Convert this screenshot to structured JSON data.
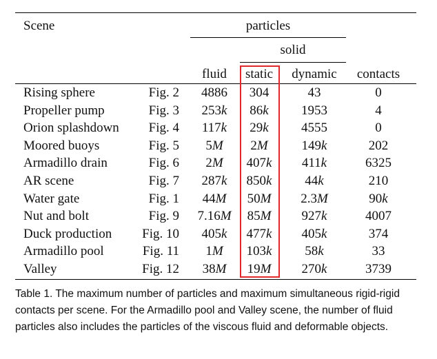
{
  "header": {
    "scene": "Scene",
    "particles": "particles",
    "solid": "solid",
    "fluid": "fluid",
    "static": "static",
    "dynamic": "dynamic",
    "contacts": "contacts"
  },
  "rows": [
    {
      "scene": "Rising sphere",
      "fig": "Fig. 2",
      "fluid": "4886",
      "static": "304",
      "dynamic": "43",
      "contacts": "0"
    },
    {
      "scene": "Propeller pump",
      "fig": "Fig. 3",
      "fluid": "253k",
      "static": "86k",
      "dynamic": "1953",
      "contacts": "4"
    },
    {
      "scene": "Orion splashdown",
      "fig": "Fig. 4",
      "fluid": "117k",
      "static": "29k",
      "dynamic": "4555",
      "contacts": "0"
    },
    {
      "scene": "Moored buoys",
      "fig": "Fig. 5",
      "fluid": "5M",
      "static": "2M",
      "dynamic": "149k",
      "contacts": "202"
    },
    {
      "scene": "Armadillo drain",
      "fig": "Fig. 6",
      "fluid": "2M",
      "static": "407k",
      "dynamic": "411k",
      "contacts": "6325"
    },
    {
      "scene": "AR scene",
      "fig": "Fig. 7",
      "fluid": "287k",
      "static": "850k",
      "dynamic": "44k",
      "contacts": "210"
    },
    {
      "scene": "Water gate",
      "fig": "Fig. 1",
      "fluid": "44M",
      "static": "50M",
      "dynamic": "2.3M",
      "contacts": "90k"
    },
    {
      "scene": "Nut and bolt",
      "fig": "Fig. 9",
      "fluid": "7.16M",
      "static": "85M",
      "dynamic": "927k",
      "contacts": "4007"
    },
    {
      "scene": "Duck production",
      "fig": "Fig. 10",
      "fluid": "405k",
      "static": "477k",
      "dynamic": "405k",
      "contacts": "374"
    },
    {
      "scene": "Armadillo pool",
      "fig": "Fig. 11",
      "fluid": "1M",
      "static": "103k",
      "dynamic": "58k",
      "contacts": "33"
    },
    {
      "scene": "Valley",
      "fig": "Fig. 12",
      "fluid": "38M",
      "static": "19M",
      "dynamic": "270k",
      "contacts": "3739"
    }
  ],
  "caption": "Table 1.  The maximum number of particles and maximum simultaneous rigid-rigid contacts per scene. For the Armadillo pool and Valley scene, the number of fluid particles also includes the particles of the viscous fluid and deformable objects.",
  "colors": {
    "highlight": "#e0282b"
  }
}
